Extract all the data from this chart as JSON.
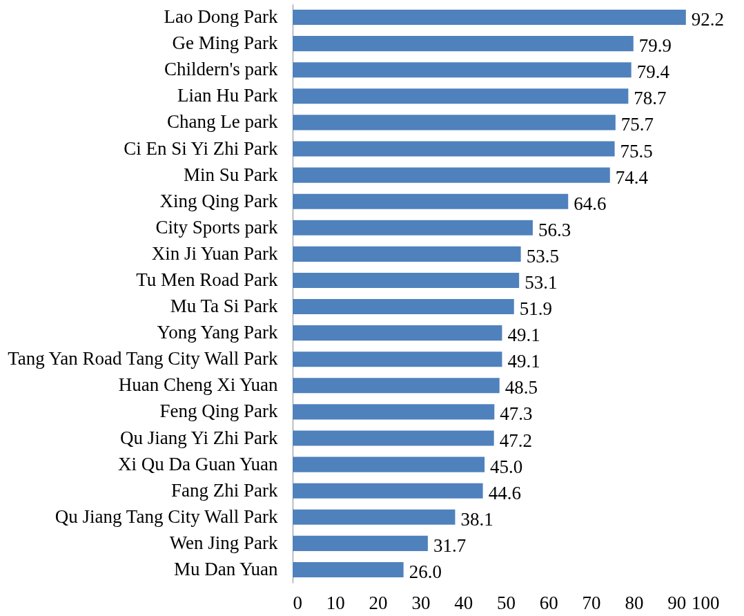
{
  "chart_data": {
    "type": "bar",
    "orientation": "horizontal",
    "categories": [
      "Lao Dong Park",
      "Ge Ming Park",
      "Childern's park",
      "Lian Hu Park",
      "Chang Le park",
      "Ci En Si Yi Zhi Park",
      "Min Su Park",
      "Xing Qing Park",
      "City Sports park",
      "Xin Ji Yuan Park",
      "Tu Men Road Park",
      "Mu Ta Si Park",
      "Yong Yang Park",
      "Tang Yan Road Tang City Wall Park",
      "Huan Cheng Xi Yuan",
      "Feng Qing Park",
      "Qu Jiang Yi Zhi Park",
      "Xi Qu Da Guan Yuan",
      "Fang Zhi Park",
      "Qu Jiang Tang City Wall Park",
      "Wen Jing Park",
      "Mu Dan Yuan"
    ],
    "values": [
      92.2,
      79.9,
      79.4,
      78.7,
      75.7,
      75.5,
      74.4,
      64.6,
      56.3,
      53.5,
      53.1,
      51.9,
      49.1,
      49.1,
      48.5,
      47.3,
      47.2,
      45.0,
      44.6,
      38.1,
      31.7,
      26.0
    ],
    "value_labels": [
      "92.2",
      "79.9",
      "79.4",
      "78.7",
      "75.7",
      "75.5",
      "74.4",
      "64.6",
      "56.3",
      "53.5",
      "53.1",
      "51.9",
      "49.1",
      "49.1",
      "48.5",
      "47.3",
      "47.2",
      "45.0",
      "44.6",
      "38.1",
      "31.7",
      "26.0"
    ],
    "color": "#4f81bd",
    "xlim": [
      0,
      100
    ],
    "xticks": [
      0,
      10,
      20,
      30,
      40,
      50,
      60,
      70,
      80,
      90,
      100
    ],
    "grid": false
  }
}
